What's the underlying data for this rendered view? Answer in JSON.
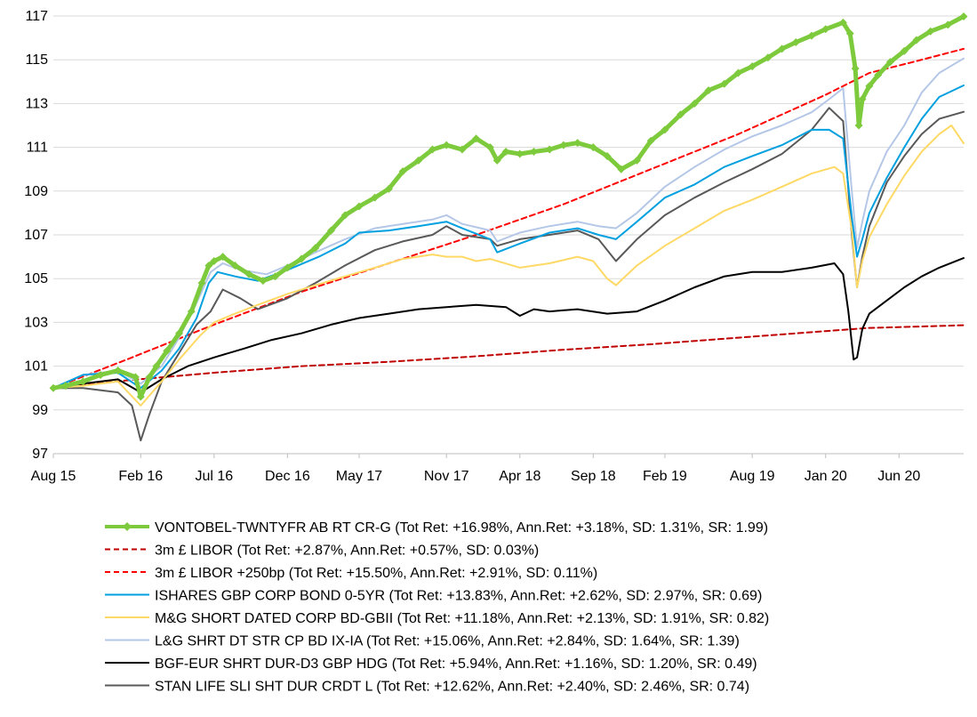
{
  "chart_data": {
    "type": "line",
    "title": "",
    "xlabel": "",
    "ylabel": "",
    "ylim": [
      97,
      117
    ],
    "yticks": [
      97,
      99,
      101,
      103,
      105,
      107,
      109,
      111,
      113,
      115,
      117
    ],
    "xlim": [
      2015.58,
      2020.79
    ],
    "xticks": [
      {
        "label": "Aug 15",
        "x": 2015.58
      },
      {
        "label": "Feb 16",
        "x": 2016.08
      },
      {
        "label": "Jul 16",
        "x": 2016.5
      },
      {
        "label": "Dec 16",
        "x": 2016.92
      },
      {
        "label": "May 17",
        "x": 2017.33
      },
      {
        "label": "Nov 17",
        "x": 2017.83
      },
      {
        "label": "Apr 18",
        "x": 2018.25
      },
      {
        "label": "Sep 18",
        "x": 2018.67
      },
      {
        "label": "Feb 19",
        "x": 2019.08
      },
      {
        "label": "Aug 19",
        "x": 2019.58
      },
      {
        "label": "Jan 20",
        "x": 2020.0
      },
      {
        "label": "Jun 20",
        "x": 2020.42
      }
    ],
    "grid": "horizontal",
    "legend_position": "bottom",
    "series": [
      {
        "name": "VONTOBEL-TWNTYFR AB RT CR-G (Tot Ret: +16.98%, Ann.Ret: +3.18%, SD: 1.31%, SR: 1.99)",
        "color": "#7DCB3C",
        "style": "solid",
        "width": 5,
        "marker": "diamond",
        "x": [
          2015.58,
          2015.65,
          2015.75,
          2015.85,
          2015.95,
          2016.05,
          2016.08,
          2016.13,
          2016.17,
          2016.23,
          2016.3,
          2016.37,
          2016.43,
          2016.47,
          2016.5,
          2016.55,
          2016.62,
          2016.7,
          2016.78,
          2016.85,
          2016.92,
          2017.0,
          2017.08,
          2017.17,
          2017.25,
          2017.33,
          2017.42,
          2017.5,
          2017.58,
          2017.67,
          2017.75,
          2017.83,
          2017.92,
          2018.0,
          2018.08,
          2018.12,
          2018.17,
          2018.25,
          2018.33,
          2018.42,
          2018.5,
          2018.58,
          2018.67,
          2018.75,
          2018.83,
          2018.92,
          2019.0,
          2019.08,
          2019.17,
          2019.25,
          2019.33,
          2019.42,
          2019.5,
          2019.58,
          2019.67,
          2019.75,
          2019.83,
          2019.92,
          2020.0,
          2020.1,
          2020.14,
          2020.17,
          2020.19,
          2020.21,
          2020.25,
          2020.3,
          2020.37,
          2020.45,
          2020.52,
          2020.6,
          2020.7,
          2020.79
        ],
        "y": [
          100.0,
          100.1,
          100.3,
          100.6,
          100.8,
          100.5,
          99.6,
          100.5,
          101.0,
          101.7,
          102.5,
          103.5,
          104.8,
          105.6,
          105.8,
          106.0,
          105.6,
          105.2,
          104.9,
          105.1,
          105.5,
          105.9,
          106.4,
          107.2,
          107.9,
          108.3,
          108.7,
          109.1,
          109.9,
          110.4,
          110.9,
          111.1,
          110.9,
          111.4,
          111.0,
          110.4,
          110.8,
          110.7,
          110.8,
          110.9,
          111.1,
          111.2,
          111.0,
          110.6,
          110.0,
          110.4,
          111.3,
          111.8,
          112.5,
          113.0,
          113.6,
          113.9,
          114.4,
          114.7,
          115.1,
          115.5,
          115.8,
          116.1,
          116.4,
          116.7,
          116.2,
          114.6,
          112.0,
          113.2,
          113.8,
          114.3,
          114.9,
          115.4,
          115.9,
          116.3,
          116.6,
          116.98
        ]
      },
      {
        "name": "3m £ LIBOR (Tot Ret: +2.87%, Ann.Ret: +0.57%, SD: 0.03%)",
        "color": "#C00000",
        "style": "dashed",
        "width": 2,
        "x": [
          2015.58,
          2016.0,
          2016.5,
          2017.0,
          2017.5,
          2018.0,
          2018.5,
          2019.0,
          2019.5,
          2020.0,
          2020.25,
          2020.5,
          2020.79
        ],
        "y": [
          100.0,
          100.35,
          100.7,
          101.0,
          101.2,
          101.45,
          101.75,
          102.0,
          102.3,
          102.6,
          102.75,
          102.8,
          102.87
        ]
      },
      {
        "name": "3m £ LIBOR +250bp (Tot Ret: +15.50%, Ann.Ret: +2.91%, SD: 0.11%)",
        "color": "#FF0000",
        "style": "dashed",
        "width": 2,
        "x": [
          2015.58,
          2016.0,
          2016.5,
          2017.0,
          2017.5,
          2018.0,
          2018.5,
          2019.0,
          2019.5,
          2020.0,
          2020.25,
          2020.5,
          2020.79
        ],
        "y": [
          100.0,
          101.3,
          102.9,
          104.4,
          105.7,
          107.0,
          108.4,
          110.0,
          111.6,
          113.4,
          114.4,
          114.9,
          115.5
        ]
      },
      {
        "name": "ISHARES GBP CORP BOND 0-5YR (Tot Ret: +13.83%, Ann.Ret: +2.62%, SD: 2.97%, SR: 0.69)",
        "color": "#00A0E0",
        "style": "solid",
        "width": 2,
        "x": [
          2015.58,
          2015.75,
          2015.95,
          2016.08,
          2016.2,
          2016.3,
          2016.4,
          2016.47,
          2016.52,
          2016.62,
          2016.75,
          2016.92,
          2017.1,
          2017.25,
          2017.33,
          2017.5,
          2017.67,
          2017.83,
          2017.92,
          2018.08,
          2018.12,
          2018.25,
          2018.42,
          2018.58,
          2018.7,
          2018.8,
          2018.92,
          2019.08,
          2019.25,
          2019.42,
          2019.58,
          2019.75,
          2019.92,
          2020.02,
          2020.1,
          2020.15,
          2020.18,
          2020.21,
          2020.25,
          2020.35,
          2020.45,
          2020.55,
          2020.65,
          2020.79
        ],
        "y": [
          100.0,
          100.6,
          100.7,
          100.0,
          100.8,
          101.8,
          103.2,
          104.8,
          105.3,
          105.1,
          104.9,
          105.4,
          106.0,
          106.6,
          107.1,
          107.2,
          107.4,
          107.6,
          107.3,
          106.8,
          106.2,
          106.6,
          107.1,
          107.3,
          107.0,
          106.8,
          107.6,
          108.7,
          109.3,
          110.1,
          110.6,
          111.1,
          111.8,
          111.8,
          111.4,
          107.8,
          106.0,
          106.8,
          108.0,
          109.6,
          111.0,
          112.3,
          113.3,
          113.83
        ]
      },
      {
        "name": "M&G SHORT DATED CORP BD-GBII (Tot Ret: +11.18%, Ann.Ret: +2.13%, SD: 1.91%, SR: 0.82)",
        "color": "#FFD966",
        "style": "solid",
        "width": 2,
        "x": [
          2015.58,
          2015.75,
          2015.95,
          2016.08,
          2016.2,
          2016.3,
          2016.42,
          2016.5,
          2016.62,
          2016.75,
          2016.92,
          2017.08,
          2017.25,
          2017.42,
          2017.58,
          2017.75,
          2017.83,
          2017.92,
          2018.0,
          2018.08,
          2018.25,
          2018.42,
          2018.58,
          2018.67,
          2018.75,
          2018.8,
          2018.92,
          2019.08,
          2019.25,
          2019.42,
          2019.58,
          2019.75,
          2019.92,
          2020.05,
          2020.1,
          2020.15,
          2020.18,
          2020.21,
          2020.25,
          2020.35,
          2020.45,
          2020.55,
          2020.65,
          2020.72,
          2020.79
        ],
        "y": [
          100.0,
          100.1,
          100.3,
          99.2,
          100.3,
          101.3,
          102.4,
          103.0,
          103.4,
          103.8,
          104.3,
          104.7,
          105.1,
          105.5,
          105.9,
          106.1,
          106.0,
          106.0,
          105.8,
          105.9,
          105.5,
          105.7,
          106.0,
          105.8,
          105.0,
          104.7,
          105.6,
          106.5,
          107.3,
          108.1,
          108.6,
          109.2,
          109.8,
          110.1,
          109.8,
          107.2,
          104.6,
          105.8,
          106.9,
          108.4,
          109.7,
          110.8,
          111.6,
          112.0,
          111.18
        ]
      },
      {
        "name": "L&G SHRT DT STR CP BD IX-IA (Tot Ret: +15.06%, Ann.Ret: +2.84%, SD: 1.64%, SR: 1.39)",
        "color": "#B4C7E7",
        "style": "solid",
        "width": 2,
        "x": [
          2015.58,
          2015.75,
          2015.95,
          2016.08,
          2016.2,
          2016.3,
          2016.4,
          2016.48,
          2016.55,
          2016.65,
          2016.8,
          2016.92,
          2017.08,
          2017.25,
          2017.42,
          2017.58,
          2017.75,
          2017.83,
          2017.92,
          2018.08,
          2018.12,
          2018.25,
          2018.42,
          2018.58,
          2018.7,
          2018.8,
          2018.92,
          2019.08,
          2019.25,
          2019.42,
          2019.58,
          2019.75,
          2019.92,
          2020.02,
          2020.1,
          2020.15,
          2020.18,
          2020.21,
          2020.25,
          2020.35,
          2020.45,
          2020.55,
          2020.65,
          2020.79
        ],
        "y": [
          100.0,
          100.6,
          100.8,
          100.2,
          101.0,
          102.3,
          103.9,
          105.3,
          105.7,
          105.4,
          105.2,
          105.6,
          106.2,
          106.8,
          107.3,
          107.5,
          107.7,
          107.9,
          107.5,
          107.2,
          106.7,
          107.1,
          107.4,
          107.6,
          107.4,
          107.3,
          108.0,
          109.2,
          110.1,
          110.9,
          111.5,
          112.0,
          112.6,
          113.2,
          113.7,
          109.0,
          106.4,
          107.6,
          109.0,
          110.8,
          112.0,
          113.5,
          114.4,
          115.06
        ]
      },
      {
        "name": "BGF-EUR SHRT DUR-D3 GBP HDG (Tot Ret: +5.94%, Ann.Ret: +1.16%, SD: 1.20%, SR: 0.49)",
        "color": "#000000",
        "style": "solid",
        "width": 2,
        "x": [
          2015.58,
          2015.75,
          2015.95,
          2016.08,
          2016.2,
          2016.35,
          2016.5,
          2016.67,
          2016.83,
          2017.0,
          2017.17,
          2017.33,
          2017.5,
          2017.67,
          2017.83,
          2018.0,
          2018.17,
          2018.25,
          2018.33,
          2018.42,
          2018.58,
          2018.75,
          2018.92,
          2019.08,
          2019.25,
          2019.42,
          2019.58,
          2019.75,
          2019.92,
          2020.05,
          2020.1,
          2020.13,
          2020.16,
          2020.18,
          2020.21,
          2020.25,
          2020.35,
          2020.45,
          2020.55,
          2020.65,
          2020.79
        ],
        "y": [
          100.0,
          100.2,
          100.4,
          99.8,
          100.4,
          101.0,
          101.4,
          101.8,
          102.2,
          102.5,
          102.9,
          103.2,
          103.4,
          103.6,
          103.7,
          103.8,
          103.7,
          103.3,
          103.6,
          103.5,
          103.6,
          103.4,
          103.5,
          104.0,
          104.6,
          105.1,
          105.3,
          105.3,
          105.5,
          105.7,
          105.2,
          103.5,
          101.3,
          101.4,
          102.7,
          103.4,
          104.0,
          104.6,
          105.1,
          105.5,
          105.94
        ]
      },
      {
        "name": "STAN LIFE SLI SHT DUR CRDT L (Tot Ret: +12.62%, Ann.Ret: +2.40%, SD: 2.46%, SR: 0.74)",
        "color": "#595959",
        "style": "solid",
        "width": 2,
        "x": [
          2015.58,
          2015.75,
          2015.95,
          2016.03,
          2016.08,
          2016.13,
          2016.2,
          2016.3,
          2016.4,
          2016.48,
          2016.55,
          2016.65,
          2016.75,
          2016.92,
          2017.08,
          2017.25,
          2017.42,
          2017.58,
          2017.75,
          2017.83,
          2017.92,
          2018.08,
          2018.12,
          2018.25,
          2018.42,
          2018.58,
          2018.7,
          2018.8,
          2018.92,
          2019.08,
          2019.25,
          2019.42,
          2019.58,
          2019.75,
          2019.92,
          2020.02,
          2020.1,
          2020.15,
          2020.18,
          2020.21,
          2020.25,
          2020.35,
          2020.45,
          2020.55,
          2020.65,
          2020.79
        ],
        "y": [
          100.0,
          100.0,
          99.8,
          99.2,
          97.6,
          98.8,
          100.3,
          101.6,
          102.9,
          103.5,
          104.5,
          104.1,
          103.6,
          104.1,
          104.8,
          105.6,
          106.3,
          106.7,
          107.0,
          107.4,
          107.0,
          106.8,
          106.5,
          106.8,
          107.0,
          107.2,
          106.8,
          105.8,
          106.8,
          107.9,
          108.7,
          109.4,
          110.0,
          110.7,
          111.8,
          112.8,
          112.2,
          107.0,
          104.6,
          106.0,
          107.4,
          109.4,
          110.6,
          111.6,
          112.3,
          112.62
        ]
      }
    ]
  }
}
